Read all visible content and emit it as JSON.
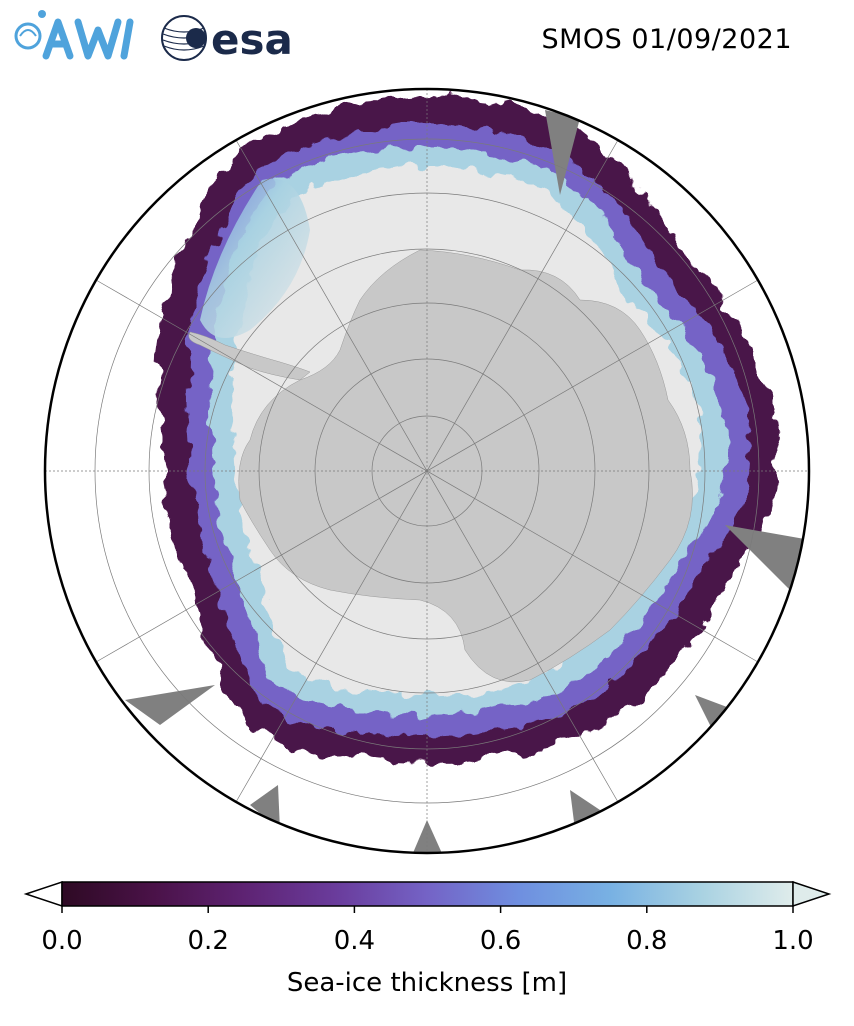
{
  "title": "SMOS 01/09/2021",
  "logos": {
    "awi": "AWI",
    "esa": "esa"
  },
  "map": {
    "projection": "south-polar-stereographic",
    "colors": {
      "land": "#c8c8c8",
      "thick_ice": "#e8e8e8",
      "no_data": "#808080",
      "ocean": "#ffffff",
      "graticule": "#7a7a7a"
    }
  },
  "colorbar": {
    "label": "Sea-ice thickness [m]",
    "min": 0.0,
    "max": 1.0,
    "ticks": [
      "0.0",
      "0.2",
      "0.4",
      "0.6",
      "0.8",
      "1.0"
    ],
    "extend": "both",
    "colors": [
      "#2e0a24",
      "#4a1248",
      "#5e2373",
      "#6a3c9c",
      "#7463c6",
      "#6f8fe0",
      "#78b1e3",
      "#a9d2e2",
      "#dfeceb"
    ]
  }
}
